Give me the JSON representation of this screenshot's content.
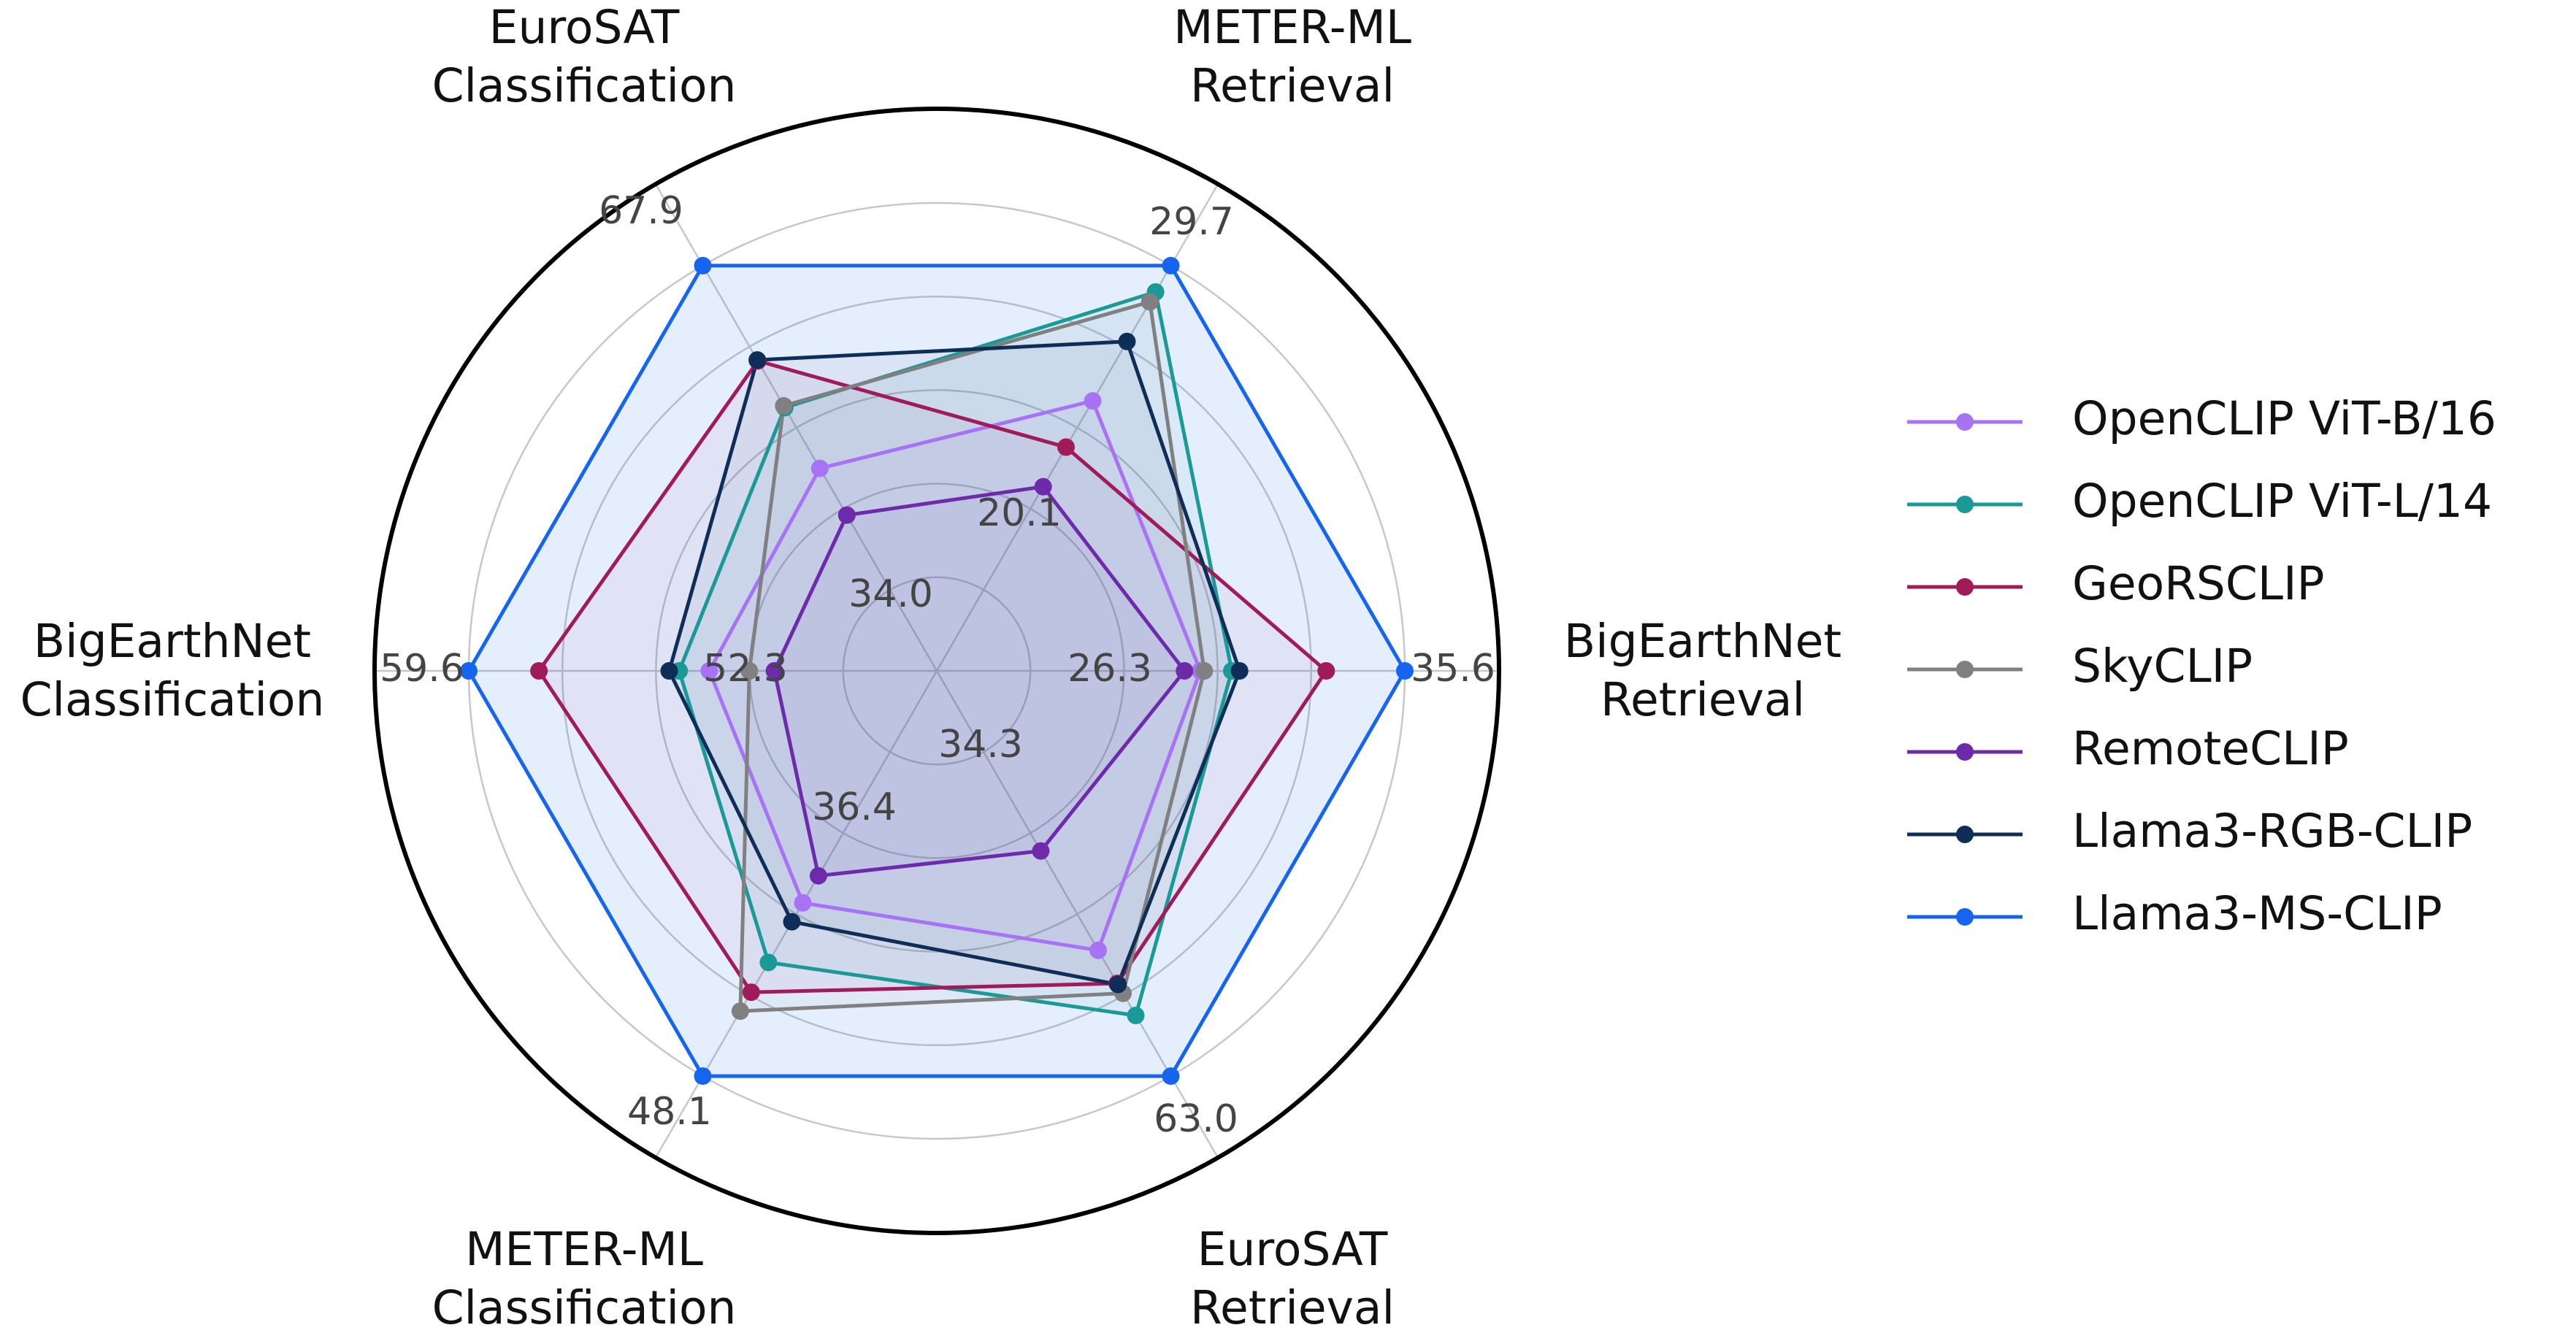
{
  "chart_data": {
    "type": "radar",
    "axes": [
      {
        "label_lines": [
          "EuroSAT",
          "Classification"
        ],
        "tick_inner": "34.0",
        "tick_outer": "67.9"
      },
      {
        "label_lines": [
          "METER-ML",
          "Retrieval"
        ],
        "tick_inner": "20.1",
        "tick_outer": "29.7"
      },
      {
        "label_lines": [
          "BigEarthNet",
          "Retrieval"
        ],
        "tick_inner": "26.3",
        "tick_outer": "35.6"
      },
      {
        "label_lines": [
          "EuroSAT",
          "Retrieval"
        ],
        "tick_inner": "34.3",
        "tick_outer": "63.0"
      },
      {
        "label_lines": [
          "METER-ML",
          "Classification"
        ],
        "tick_inner": "36.4",
        "tick_outer": "48.1"
      },
      {
        "label_lines": [
          "BigEarthNet",
          "Classification"
        ],
        "tick_inner": "52.3",
        "tick_outer": "59.6"
      }
    ],
    "grid": true,
    "legend_position": "right",
    "series": [
      {
        "name": "OpenCLIP ViT-B/16",
        "color": "#a872f5",
        "fill": false,
        "values": [
          46.2,
          25.6,
          30.4,
          51.6,
          41.7,
          54.8
        ]
      },
      {
        "name": "OpenCLIP ViT-L/14",
        "color": "#1a9a96",
        "fill": false,
        "values": [
          52.7,
          28.9,
          31.2,
          57.5,
          43.9,
          55.4
        ]
      },
      {
        "name": "GeoRSCLIP",
        "color": "#a11a5a",
        "fill": false,
        "values": [
          57.7,
          24.2,
          33.6,
          54.6,
          45.0,
          58.2
        ]
      },
      {
        "name": "SkyCLIP",
        "color": "#808080",
        "fill": false,
        "values": [
          52.9,
          28.6,
          30.5,
          55.5,
          45.7,
          54.0
        ]
      },
      {
        "name": "RemoteCLIP",
        "color": "#6d2bab",
        "fill": false,
        "values": [
          41.2,
          23.0,
          30.0,
          42.6,
          40.7,
          53.5
        ]
      },
      {
        "name": "Llama3-RGB-CLIP",
        "color": "#0f2e57",
        "fill": false,
        "values": [
          57.8,
          27.4,
          31.4,
          54.7,
          42.4,
          55.6
        ]
      },
      {
        "name": "Llama3-MS-CLIP",
        "color": "#1565f0",
        "fill": true,
        "values": [
          67.9,
          29.7,
          35.6,
          63.0,
          48.1,
          59.6
        ]
      }
    ]
  }
}
